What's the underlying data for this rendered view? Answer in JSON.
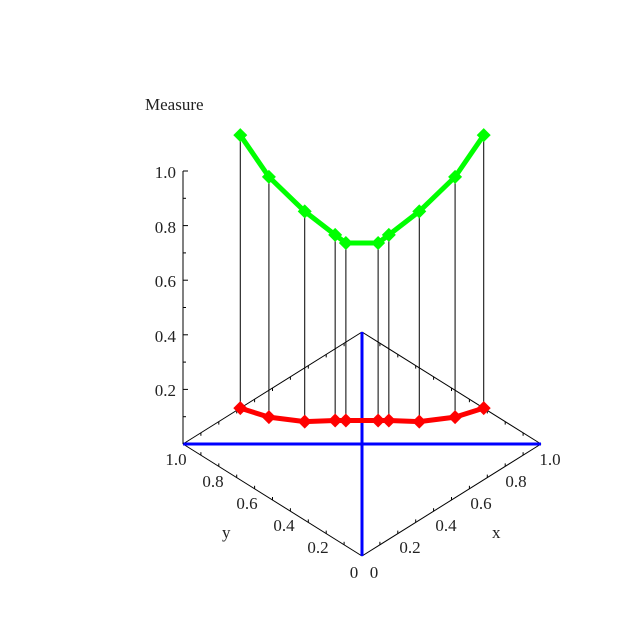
{
  "chart_data": {
    "type": "scatter3d",
    "zlabel": "Measure",
    "xlabel": "x",
    "ylabel": "y",
    "xlim": [
      0,
      1
    ],
    "ylim": [
      0,
      1
    ],
    "zlim": [
      0,
      1
    ],
    "z_ticks": [
      "0.2",
      "0.4",
      "0.6",
      "0.8",
      "1.0"
    ],
    "x_ticks": [
      "0",
      "0.2",
      "0.4",
      "0.6",
      "0.8",
      "1.0"
    ],
    "y_ticks": [
      "0",
      "0.2",
      "0.4",
      "0.6",
      "0.8",
      "1.0"
    ],
    "points": {
      "x": [
        0.32,
        0.36,
        0.44,
        0.53,
        0.56,
        0.65,
        0.68,
        0.76,
        0.88,
        1.0
      ],
      "y": [
        1.0,
        0.88,
        0.76,
        0.68,
        0.65,
        0.56,
        0.53,
        0.44,
        0.36,
        0.32
      ],
      "z": [
        1.0,
        0.88,
        0.77,
        0.68,
        0.65,
        0.65,
        0.68,
        0.77,
        0.88,
        1.0
      ]
    },
    "series": [
      {
        "role": "base curve in x-y plane (z = 0)",
        "color": "#ff0000"
      },
      {
        "role": "Measure values",
        "color": "#00ff00"
      }
    ],
    "diagonal_color": "#0000ff",
    "stems": true,
    "marker": "diamond"
  }
}
